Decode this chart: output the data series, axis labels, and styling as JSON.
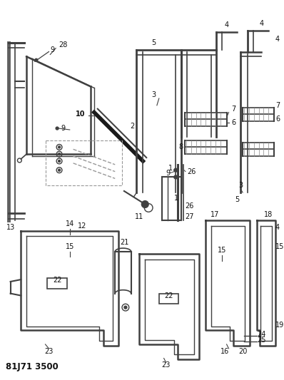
{
  "title": "81J71 3500",
  "bg_color": "#ffffff",
  "line_color": "#404040",
  "text_color": "#111111",
  "title_fontsize": 8.5,
  "label_fontsize": 7.0,
  "fig_width": 3.98,
  "fig_height": 5.33,
  "dpi": 100
}
